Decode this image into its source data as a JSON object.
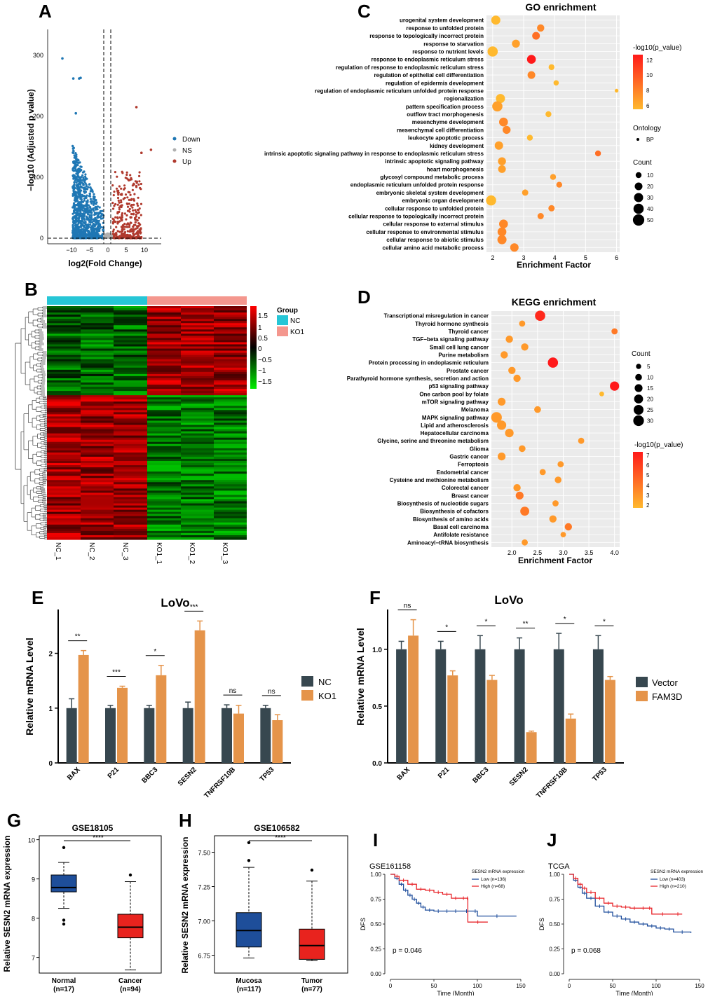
{
  "panels": {
    "A": "A",
    "B": "B",
    "C": "C",
    "D": "D",
    "E": "E",
    "F": "F",
    "G": "G",
    "H": "H",
    "I": "I",
    "J": "J"
  },
  "volcano": {
    "xlabel": "log2(Fold Change)",
    "ylabel": "−log10 (Adjusted p value)",
    "xticks": [
      "−10",
      "−5",
      "0",
      "5",
      "10"
    ],
    "yticks": [
      "0",
      "100",
      "200",
      "300"
    ],
    "legend": [
      {
        "label": "Down",
        "color": "#1f77b4"
      },
      {
        "label": "NS",
        "color": "#b0b0b0"
      },
      {
        "label": "Up",
        "color": "#b03a2e"
      }
    ]
  },
  "heatmap": {
    "group_title": "Group",
    "groups": [
      {
        "label": "NC",
        "color": "#26c6d6"
      },
      {
        "label": "KO1",
        "color": "#f4978e"
      }
    ],
    "scale_ticks": [
      "1.5",
      "1",
      "0.5",
      "0",
      "−0.5",
      "−1",
      "−1.5"
    ],
    "samples": [
      "NC_1",
      "NC_2",
      "NC_3",
      "KO1_1",
      "KO1_2",
      "KO1_3"
    ]
  },
  "go": {
    "title": "GO enrichment",
    "xlabel": "Enrichment Factor",
    "xticks": [
      "2",
      "3",
      "4",
      "5",
      "6"
    ],
    "legend_color_title": "-log10(p_value)",
    "legend_color_ticks": [
      "12",
      "10",
      "8",
      "6"
    ],
    "ontology_title": "Ontology",
    "ontology_label": "BP",
    "count_title": "Count",
    "count_ticks": [
      "10",
      "20",
      "30",
      "40",
      "50"
    ]
  },
  "kegg": {
    "title": "KEGG enrichment",
    "xlabel": "Enrichment Factor",
    "xticks": [
      "2.0",
      "2.5",
      "3.0",
      "3.5",
      "4.0"
    ],
    "count_title": "Count",
    "count_ticks": [
      "5",
      "10",
      "15",
      "20",
      "25",
      "30"
    ],
    "legend_color_title": "-log10(p_value)",
    "legend_color_ticks": [
      "7",
      "6",
      "5",
      "4",
      "3",
      "2"
    ]
  },
  "barE": {
    "title": "LoVo",
    "ylabel": "Relative mRNA Level",
    "yticks": [
      "0",
      "1",
      "2"
    ],
    "legend": [
      {
        "label": "NC",
        "color": "#37474f"
      },
      {
        "label": "KO1",
        "color": "#e5944a"
      }
    ]
  },
  "barF": {
    "title": "LoVo",
    "ylabel": "Relative mRNA Level",
    "yticks": [
      "0.0",
      "0.5",
      "1.0"
    ],
    "legend": [
      {
        "label": "Vector",
        "color": "#37474f"
      },
      {
        "label": "FAM3D",
        "color": "#e5944a"
      }
    ]
  },
  "boxG": {
    "title": "GSE18105",
    "ylabel": "Relative SESN2 mRNA expression",
    "yticks": [
      "7",
      "8",
      "9",
      "10"
    ],
    "sig": "****",
    "groups": [
      {
        "label": "Normal",
        "n": "(n=17)"
      },
      {
        "label": "Cancer",
        "n": "(n=94)"
      }
    ]
  },
  "boxH": {
    "title": "GSE106582",
    "ylabel": "Relative SESN2 mRNA expression",
    "yticks": [
      "6.75",
      "7.00",
      "7.25",
      "7.50"
    ],
    "sig": "****",
    "groups": [
      {
        "label": "Mucosa",
        "n": "(n=117)"
      },
      {
        "label": "Tumor",
        "n": "(n=77)"
      }
    ]
  },
  "kmI": {
    "title": "GSE161158",
    "ylabel": "DFS",
    "xlabel": "Time (Month)",
    "xticks": [
      "0",
      "50",
      "100",
      "150"
    ],
    "yticks": [
      "0.00",
      "0.25",
      "0.50",
      "0.75",
      "1.00"
    ],
    "legend_title": "SESN2 mRNA expression",
    "legend": [
      {
        "label": "Low (n=136)",
        "color": "#1f4e9c"
      },
      {
        "label": "High (n=68)",
        "color": "#e8262b"
      }
    ],
    "pvalue": "p = 0.046"
  },
  "kmJ": {
    "title": "TCGA",
    "ylabel": "DFS",
    "xlabel": "Time (Month)",
    "xticks": [
      "0",
      "50",
      "100",
      "150"
    ],
    "yticks": [
      "0.00",
      "0.25",
      "0.50",
      "0.75",
      "1.00"
    ],
    "legend_title": "SESN2 mRNA expression",
    "legend": [
      {
        "label": "Low (n=403)",
        "color": "#1f4e9c"
      },
      {
        "label": "High (n=210)",
        "color": "#e8262b"
      }
    ],
    "pvalue": "p = 0.068"
  },
  "chart_data": [
    {
      "id": "go",
      "type": "scatter",
      "title": "GO enrichment",
      "xlabel": "Enrichment Factor",
      "xlim": [
        1.8,
        6.1
      ],
      "categories": [
        "urogenital system development",
        "response to unfolded protein",
        "response to topologically incorrect protein",
        "response to starvation",
        "response to nutrient levels",
        "response to endoplasmic reticulum stress",
        "regulation of response to endoplasmic reticulum stress",
        "regulation of epithelial cell differentiation",
        "regulation of epidermis development",
        "regulation of endoplasmic reticulum unfolded protein response",
        "regionalization",
        "pattern specification process",
        "outflow tract morphogenesis",
        "mesenchyme development",
        "mesenchymal cell differentiation",
        "leukocyte apoptotic process",
        "kidney development",
        "intrinsic apoptotic signaling pathway in response to endoplasmic reticulum stress",
        "intrinsic apoptotic signaling pathway",
        "heart morphogenesis",
        "glycosyl compound metabolic process",
        "endoplasmic reticulum unfolded protein response",
        "embryonic skeletal system development",
        "embryonic organ development",
        "cellular response to unfolded protein",
        "cellular response to topologically incorrect protein",
        "cellular response to external stimulus",
        "cellular response to environmental stimulus",
        "cellular response to abiotic stimulus",
        "cellular amino acid metabolic process"
      ],
      "x": [
        2.1,
        3.55,
        3.4,
        2.75,
        2.0,
        3.25,
        3.9,
        3.25,
        4.05,
        6.0,
        2.25,
        2.15,
        3.8,
        2.35,
        2.45,
        3.2,
        2.2,
        5.4,
        2.3,
        2.3,
        3.95,
        4.15,
        3.05,
        1.95,
        3.9,
        3.55,
        2.35,
        2.3,
        2.3,
        2.7
      ],
      "count": [
        30,
        18,
        20,
        22,
        40,
        28,
        10,
        20,
        8,
        3,
        30,
        40,
        10,
        28,
        22,
        10,
        25,
        10,
        22,
        20,
        10,
        10,
        12,
        38,
        12,
        12,
        28,
        28,
        30,
        25
      ],
      "log10p": [
        6,
        8,
        9,
        7,
        6,
        12.5,
        6,
        8,
        6,
        6,
        6,
        7,
        6,
        8,
        8,
        6,
        7,
        9,
        7,
        7,
        7,
        8,
        7,
        6,
        8,
        8,
        8,
        8,
        8,
        8
      ]
    },
    {
      "id": "kegg",
      "type": "scatter",
      "title": "KEGG enrichment",
      "xlabel": "Enrichment Factor",
      "xlim": [
        1.6,
        4.1
      ],
      "categories": [
        "Transcriptional misregulation in cancer",
        "Thyroid hormone synthesis",
        "Thyroid cancer",
        "TGF−beta signaling pathway",
        "Small cell lung cancer",
        "Purine metabolism",
        "Protein processing in endoplasmic reticulum",
        "Prostate cancer",
        "Parathyroid hormone synthesis, secretion and action",
        "p53 signaling pathway",
        "One carbon pool by folate",
        "mTOR signaling pathway",
        "Melanoma",
        "MAPK signaling pathway",
        "Lipid and atherosclerosis",
        "Hepatocellular carcinoma",
        "Glycine, serine and threonine metabolism",
        "Glioma",
        "Gastric cancer",
        "Ferroptosis",
        "Endometrial cancer",
        "Cysteine and methionine metabolism",
        "Colorectal cancer",
        "Breast cancer",
        "Biosynthesis of nucleotide sugars",
        "Biosynthesis of cofactors",
        "Biosynthesis of amino acids",
        "Basal cell carcinoma",
        "Antifolate resistance",
        "Aminoacyl−tRNA biosynthesis"
      ],
      "x": [
        2.55,
        2.2,
        4.0,
        1.95,
        2.25,
        1.85,
        2.8,
        2.0,
        2.1,
        4.0,
        3.75,
        1.8,
        2.5,
        1.7,
        1.8,
        1.95,
        3.35,
        2.2,
        1.8,
        2.95,
        2.6,
        2.9,
        2.1,
        2.15,
        2.85,
        2.25,
        2.8,
        3.1,
        3.0,
        2.25
      ],
      "count": [
        28,
        8,
        8,
        12,
        12,
        12,
        28,
        12,
        12,
        22,
        4,
        15,
        10,
        30,
        22,
        18,
        8,
        10,
        15,
        8,
        8,
        10,
        12,
        15,
        8,
        20,
        12,
        12,
        6,
        8
      ],
      "log10p": [
        6.5,
        3,
        4,
        3,
        3,
        3,
        7,
        3,
        3,
        7,
        2,
        3,
        3,
        3,
        3,
        3,
        3,
        3,
        3,
        3,
        3,
        3,
        3,
        4,
        3,
        4,
        3,
        4,
        3,
        3
      ]
    },
    {
      "id": "E",
      "type": "bar",
      "title": "LoVo",
      "ylabel": "Relative mRNA Level",
      "ylim": [
        0,
        2.8
      ],
      "categories": [
        "BAX",
        "P21",
        "BBC3",
        "SESN2",
        "TNFRSF10B",
        "TP53"
      ],
      "series": [
        {
          "name": "NC",
          "values": [
            1.0,
            1.0,
            1.0,
            1.0,
            1.0,
            1.0
          ],
          "err": [
            0.17,
            0.05,
            0.05,
            0.11,
            0.06,
            0.05
          ]
        },
        {
          "name": "KO1",
          "values": [
            1.97,
            1.37,
            1.6,
            2.42,
            0.9,
            0.78
          ],
          "err": [
            0.08,
            0.03,
            0.18,
            0.17,
            0.15,
            0.1
          ]
        }
      ],
      "significance": [
        "**",
        "***",
        "*",
        "***",
        "ns",
        "ns"
      ]
    },
    {
      "id": "F",
      "type": "bar",
      "title": "LoVo",
      "ylabel": "Relative mRNA Level",
      "ylim": [
        0,
        1.35
      ],
      "categories": [
        "BAX",
        "P21",
        "BBC3",
        "SESN2",
        "TNFRSF10B",
        "TP53"
      ],
      "series": [
        {
          "name": "Vector",
          "values": [
            1.0,
            1.0,
            1.0,
            1.0,
            1.0,
            1.0
          ],
          "err": [
            0.07,
            0.07,
            0.12,
            0.1,
            0.14,
            0.12
          ]
        },
        {
          "name": "FAM3D",
          "values": [
            1.12,
            0.77,
            0.73,
            0.27,
            0.39,
            0.73
          ],
          "err": [
            0.14,
            0.04,
            0.04,
            0.01,
            0.04,
            0.03
          ]
        }
      ],
      "significance": [
        "ns",
        "*",
        "*",
        "**",
        "*",
        "*"
      ]
    },
    {
      "id": "G",
      "type": "box",
      "title": "GSE18105",
      "ylabel": "Relative SESN2 mRNA expression",
      "ylim": [
        6.6,
        10.1
      ],
      "categories": [
        "Normal",
        "Cancer"
      ],
      "boxes": [
        {
          "min": 8.25,
          "q1": 8.67,
          "median": 8.78,
          "q3": 9.1,
          "max": 9.42,
          "outliers": [
            9.8,
            7.95,
            7.85
          ]
        },
        {
          "min": 6.68,
          "q1": 7.5,
          "median": 7.77,
          "q3": 8.1,
          "max": 8.93,
          "outliers": [
            9.1
          ]
        }
      ]
    },
    {
      "id": "H",
      "type": "box",
      "title": "GSE106582",
      "ylabel": "Relative SESN2 mRNA expression",
      "ylim": [
        6.62,
        7.62
      ],
      "categories": [
        "Mucosa",
        "Tumor"
      ],
      "boxes": [
        {
          "min": 6.73,
          "q1": 6.81,
          "median": 6.93,
          "q3": 7.06,
          "max": 7.39,
          "outliers": [
            7.57,
            7.44
          ]
        },
        {
          "min": 6.71,
          "q1": 6.72,
          "median": 6.82,
          "q3": 6.94,
          "max": 7.29,
          "outliers": [
            7.37
          ]
        }
      ]
    },
    {
      "id": "I",
      "type": "line",
      "title": "GSE161158",
      "xlabel": "Time (Month)",
      "ylabel": "DFS",
      "xlim": [
        0,
        150
      ],
      "ylim": [
        0,
        1
      ],
      "series": [
        {
          "name": "Low (n=136)",
          "x": [
            0,
            5,
            10,
            15,
            20,
            25,
            30,
            35,
            40,
            50,
            60,
            70,
            80,
            95,
            100,
            145
          ],
          "y": [
            1.0,
            0.96,
            0.9,
            0.84,
            0.79,
            0.75,
            0.71,
            0.67,
            0.64,
            0.63,
            0.63,
            0.63,
            0.63,
            0.63,
            0.58,
            0.58
          ]
        },
        {
          "name": "High (n=68)",
          "x": [
            0,
            5,
            10,
            20,
            30,
            40,
            50,
            60,
            70,
            80,
            88,
            89,
            112
          ],
          "y": [
            1.0,
            0.98,
            0.94,
            0.9,
            0.85,
            0.84,
            0.82,
            0.8,
            0.76,
            0.76,
            0.76,
            0.52,
            0.52
          ]
        }
      ]
    },
    {
      "id": "J",
      "type": "line",
      "title": "TCGA",
      "xlabel": "Time (Month)",
      "ylabel": "DFS",
      "xlim": [
        0,
        150
      ],
      "ylim": [
        0,
        1
      ],
      "series": [
        {
          "name": "Low (n=403)",
          "x": [
            0,
            5,
            10,
            15,
            20,
            30,
            40,
            50,
            60,
            70,
            80,
            90,
            100,
            110,
            120,
            140
          ],
          "y": [
            1.0,
            0.94,
            0.87,
            0.81,
            0.76,
            0.68,
            0.62,
            0.58,
            0.55,
            0.52,
            0.5,
            0.48,
            0.46,
            0.45,
            0.42,
            0.41
          ]
        },
        {
          "name": "High (n=210)",
          "x": [
            0,
            5,
            10,
            15,
            20,
            30,
            40,
            50,
            60,
            70,
            80,
            90,
            95,
            120,
            130
          ],
          "y": [
            1.0,
            0.96,
            0.9,
            0.86,
            0.82,
            0.76,
            0.71,
            0.68,
            0.67,
            0.66,
            0.66,
            0.66,
            0.6,
            0.6,
            0.6
          ]
        }
      ]
    }
  ]
}
